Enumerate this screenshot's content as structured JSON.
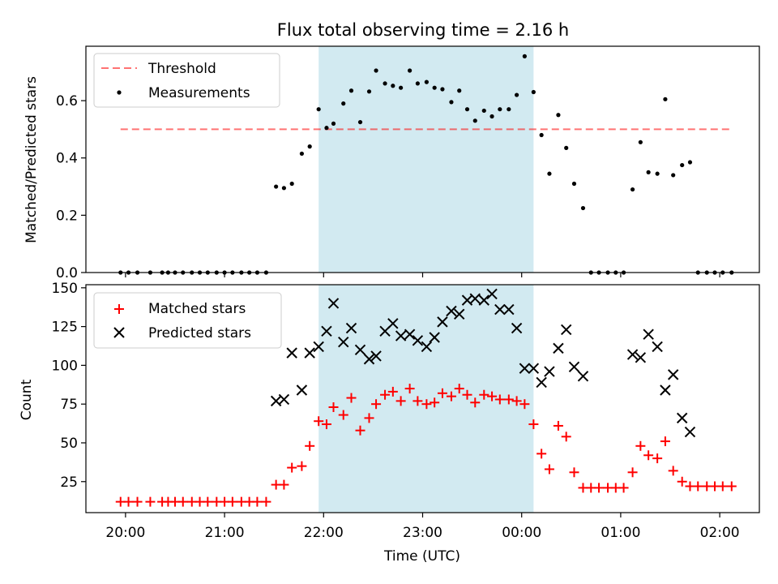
{
  "title": "Flux total observing time = 2.16 h",
  "colors": {
    "shade": "#add8e6",
    "threshold": "#ff0000",
    "matched": "#ff0000",
    "predicted": "#000000",
    "measure": "#000000"
  },
  "chart_data": [
    {
      "type": "scatter",
      "ylabel": "Matched/Predicted stars",
      "xlabel": "",
      "xlim_hours": [
        19.6,
        26.4
      ],
      "ylim": [
        0,
        0.79
      ],
      "yticks": [
        0.0,
        0.2,
        0.4,
        0.6
      ],
      "ytick_labels": [
        "0.0",
        "0.2",
        "0.4",
        "0.6"
      ],
      "shaded_span_hours": [
        21.95,
        24.12
      ],
      "legend": {
        "placement": "upper left",
        "entries": [
          "Threshold",
          "Measurements"
        ]
      },
      "threshold": {
        "name": "Threshold",
        "value": 0.5,
        "x_range_hours": [
          19.95,
          26.13
        ]
      },
      "series": [
        {
          "name": "Measurements",
          "points": [
            [
              19.95,
              0.0
            ],
            [
              20.03,
              0.0
            ],
            [
              20.12,
              0.0
            ],
            [
              20.25,
              0.0
            ],
            [
              20.37,
              0.0
            ],
            [
              20.43,
              0.0
            ],
            [
              20.5,
              0.0
            ],
            [
              20.58,
              0.0
            ],
            [
              20.67,
              0.0
            ],
            [
              20.75,
              0.0
            ],
            [
              20.83,
              0.0
            ],
            [
              20.92,
              0.0
            ],
            [
              21.0,
              0.0
            ],
            [
              21.08,
              0.0
            ],
            [
              21.17,
              0.0
            ],
            [
              21.25,
              0.0
            ],
            [
              21.33,
              0.0
            ],
            [
              21.42,
              0.0
            ],
            [
              21.52,
              0.3
            ],
            [
              21.6,
              0.295
            ],
            [
              21.68,
              0.31
            ],
            [
              21.78,
              0.415
            ],
            [
              21.86,
              0.44
            ],
            [
              21.95,
              0.57
            ],
            [
              22.03,
              0.505
            ],
            [
              22.1,
              0.52
            ],
            [
              22.2,
              0.59
            ],
            [
              22.28,
              0.635
            ],
            [
              22.37,
              0.525
            ],
            [
              22.46,
              0.632
            ],
            [
              22.53,
              0.705
            ],
            [
              22.62,
              0.66
            ],
            [
              22.7,
              0.652
            ],
            [
              22.78,
              0.645
            ],
            [
              22.87,
              0.705
            ],
            [
              22.95,
              0.66
            ],
            [
              23.04,
              0.665
            ],
            [
              23.12,
              0.645
            ],
            [
              23.2,
              0.64
            ],
            [
              23.29,
              0.595
            ],
            [
              23.37,
              0.635
            ],
            [
              23.45,
              0.57
            ],
            [
              23.53,
              0.53
            ],
            [
              23.62,
              0.565
            ],
            [
              23.7,
              0.545
            ],
            [
              23.78,
              0.57
            ],
            [
              23.87,
              0.57
            ],
            [
              23.95,
              0.62
            ],
            [
              24.03,
              0.755
            ],
            [
              24.12,
              0.63
            ],
            [
              24.2,
              0.48
            ],
            [
              24.28,
              0.345
            ],
            [
              24.37,
              0.55
            ],
            [
              24.45,
              0.435
            ],
            [
              24.53,
              0.31
            ],
            [
              24.62,
              0.225
            ],
            [
              24.7,
              0.0
            ],
            [
              24.78,
              0.0
            ],
            [
              24.87,
              0.0
            ],
            [
              24.95,
              0.0
            ],
            [
              25.03,
              0.0
            ],
            [
              25.12,
              0.29
            ],
            [
              25.2,
              0.455
            ],
            [
              25.28,
              0.35
            ],
            [
              25.37,
              0.345
            ],
            [
              25.45,
              0.605
            ],
            [
              25.53,
              0.34
            ],
            [
              25.62,
              0.375
            ],
            [
              25.7,
              0.385
            ],
            [
              25.78,
              0.0
            ],
            [
              25.87,
              0.0
            ],
            [
              25.95,
              0.0
            ],
            [
              26.03,
              0.0
            ],
            [
              26.12,
              0.0
            ]
          ]
        }
      ]
    },
    {
      "type": "scatter",
      "ylabel": "Count",
      "xlabel": "Time (UTC)",
      "xlim_hours": [
        19.6,
        26.4
      ],
      "ylim": [
        5,
        152
      ],
      "yticks": [
        25,
        50,
        75,
        100,
        125,
        150
      ],
      "ytick_labels": [
        "25",
        "50",
        "75",
        "100",
        "125",
        "150"
      ],
      "xticks_hours": [
        20,
        21,
        22,
        23,
        24,
        25,
        26
      ],
      "xtick_labels": [
        "20:00",
        "21:00",
        "22:00",
        "23:00",
        "00:00",
        "01:00",
        "02:00"
      ],
      "shaded_span_hours": [
        21.95,
        24.12
      ],
      "legend": {
        "placement": "upper left",
        "entries": [
          "Matched stars",
          "Predicted stars"
        ]
      },
      "series": [
        {
          "name": "Matched stars",
          "marker": "+",
          "points": [
            [
              19.95,
              12
            ],
            [
              20.03,
              12
            ],
            [
              20.12,
              12
            ],
            [
              20.25,
              12
            ],
            [
              20.37,
              12
            ],
            [
              20.43,
              12
            ],
            [
              20.5,
              12
            ],
            [
              20.58,
              12
            ],
            [
              20.67,
              12
            ],
            [
              20.75,
              12
            ],
            [
              20.83,
              12
            ],
            [
              20.92,
              12
            ],
            [
              21.0,
              12
            ],
            [
              21.08,
              12
            ],
            [
              21.17,
              12
            ],
            [
              21.25,
              12
            ],
            [
              21.33,
              12
            ],
            [
              21.42,
              12
            ],
            [
              21.52,
              23
            ],
            [
              21.6,
              23
            ],
            [
              21.68,
              34
            ],
            [
              21.78,
              35
            ],
            [
              21.86,
              48
            ],
            [
              21.95,
              64
            ],
            [
              22.03,
              62
            ],
            [
              22.1,
              73
            ],
            [
              22.2,
              68
            ],
            [
              22.28,
              79
            ],
            [
              22.37,
              58
            ],
            [
              22.46,
              66
            ],
            [
              22.53,
              75
            ],
            [
              22.62,
              81
            ],
            [
              22.7,
              83
            ],
            [
              22.78,
              77
            ],
            [
              22.87,
              85
            ],
            [
              22.95,
              77
            ],
            [
              23.04,
              75
            ],
            [
              23.12,
              76
            ],
            [
              23.2,
              82
            ],
            [
              23.29,
              80
            ],
            [
              23.37,
              85
            ],
            [
              23.45,
              81
            ],
            [
              23.53,
              76
            ],
            [
              23.62,
              81
            ],
            [
              23.7,
              80
            ],
            [
              23.78,
              78
            ],
            [
              23.87,
              78
            ],
            [
              23.95,
              77
            ],
            [
              24.03,
              75
            ],
            [
              24.12,
              62
            ],
            [
              24.2,
              43
            ],
            [
              24.28,
              33
            ],
            [
              24.37,
              61
            ],
            [
              24.45,
              54
            ],
            [
              24.53,
              31
            ],
            [
              24.62,
              21
            ],
            [
              24.7,
              21
            ],
            [
              24.78,
              21
            ],
            [
              24.87,
              21
            ],
            [
              24.95,
              21
            ],
            [
              25.03,
              21
            ],
            [
              25.12,
              31
            ],
            [
              25.2,
              48
            ],
            [
              25.28,
              42
            ],
            [
              25.37,
              40
            ],
            [
              25.45,
              51
            ],
            [
              25.53,
              32
            ],
            [
              25.62,
              25
            ],
            [
              25.7,
              22
            ],
            [
              25.78,
              22
            ],
            [
              25.87,
              22
            ],
            [
              25.95,
              22
            ],
            [
              26.03,
              22
            ],
            [
              26.12,
              22
            ]
          ]
        },
        {
          "name": "Predicted stars",
          "marker": "x",
          "points": [
            [
              21.52,
              77
            ],
            [
              21.6,
              78
            ],
            [
              21.68,
              108
            ],
            [
              21.78,
              84
            ],
            [
              21.86,
              108
            ],
            [
              21.95,
              112
            ],
            [
              22.03,
              122
            ],
            [
              22.1,
              140
            ],
            [
              22.2,
              115
            ],
            [
              22.28,
              124
            ],
            [
              22.37,
              110
            ],
            [
              22.46,
              104
            ],
            [
              22.53,
              106
            ],
            [
              22.62,
              122
            ],
            [
              22.7,
              127
            ],
            [
              22.78,
              119
            ],
            [
              22.87,
              120
            ],
            [
              22.95,
              116
            ],
            [
              23.04,
              112
            ],
            [
              23.12,
              118
            ],
            [
              23.2,
              128
            ],
            [
              23.29,
              135
            ],
            [
              23.37,
              133
            ],
            [
              23.45,
              142
            ],
            [
              23.53,
              143
            ],
            [
              23.62,
              142
            ],
            [
              23.7,
              146
            ],
            [
              23.78,
              136
            ],
            [
              23.87,
              136
            ],
            [
              23.95,
              124
            ],
            [
              24.03,
              98
            ],
            [
              24.12,
              98
            ],
            [
              24.2,
              89
            ],
            [
              24.28,
              96
            ],
            [
              24.37,
              111
            ],
            [
              24.45,
              123
            ],
            [
              24.53,
              99
            ],
            [
              24.62,
              93
            ],
            [
              25.12,
              107
            ],
            [
              25.2,
              105
            ],
            [
              25.28,
              120
            ],
            [
              25.37,
              112
            ],
            [
              25.45,
              84
            ],
            [
              25.53,
              94
            ],
            [
              25.62,
              66
            ],
            [
              25.7,
              57
            ]
          ]
        }
      ]
    }
  ]
}
